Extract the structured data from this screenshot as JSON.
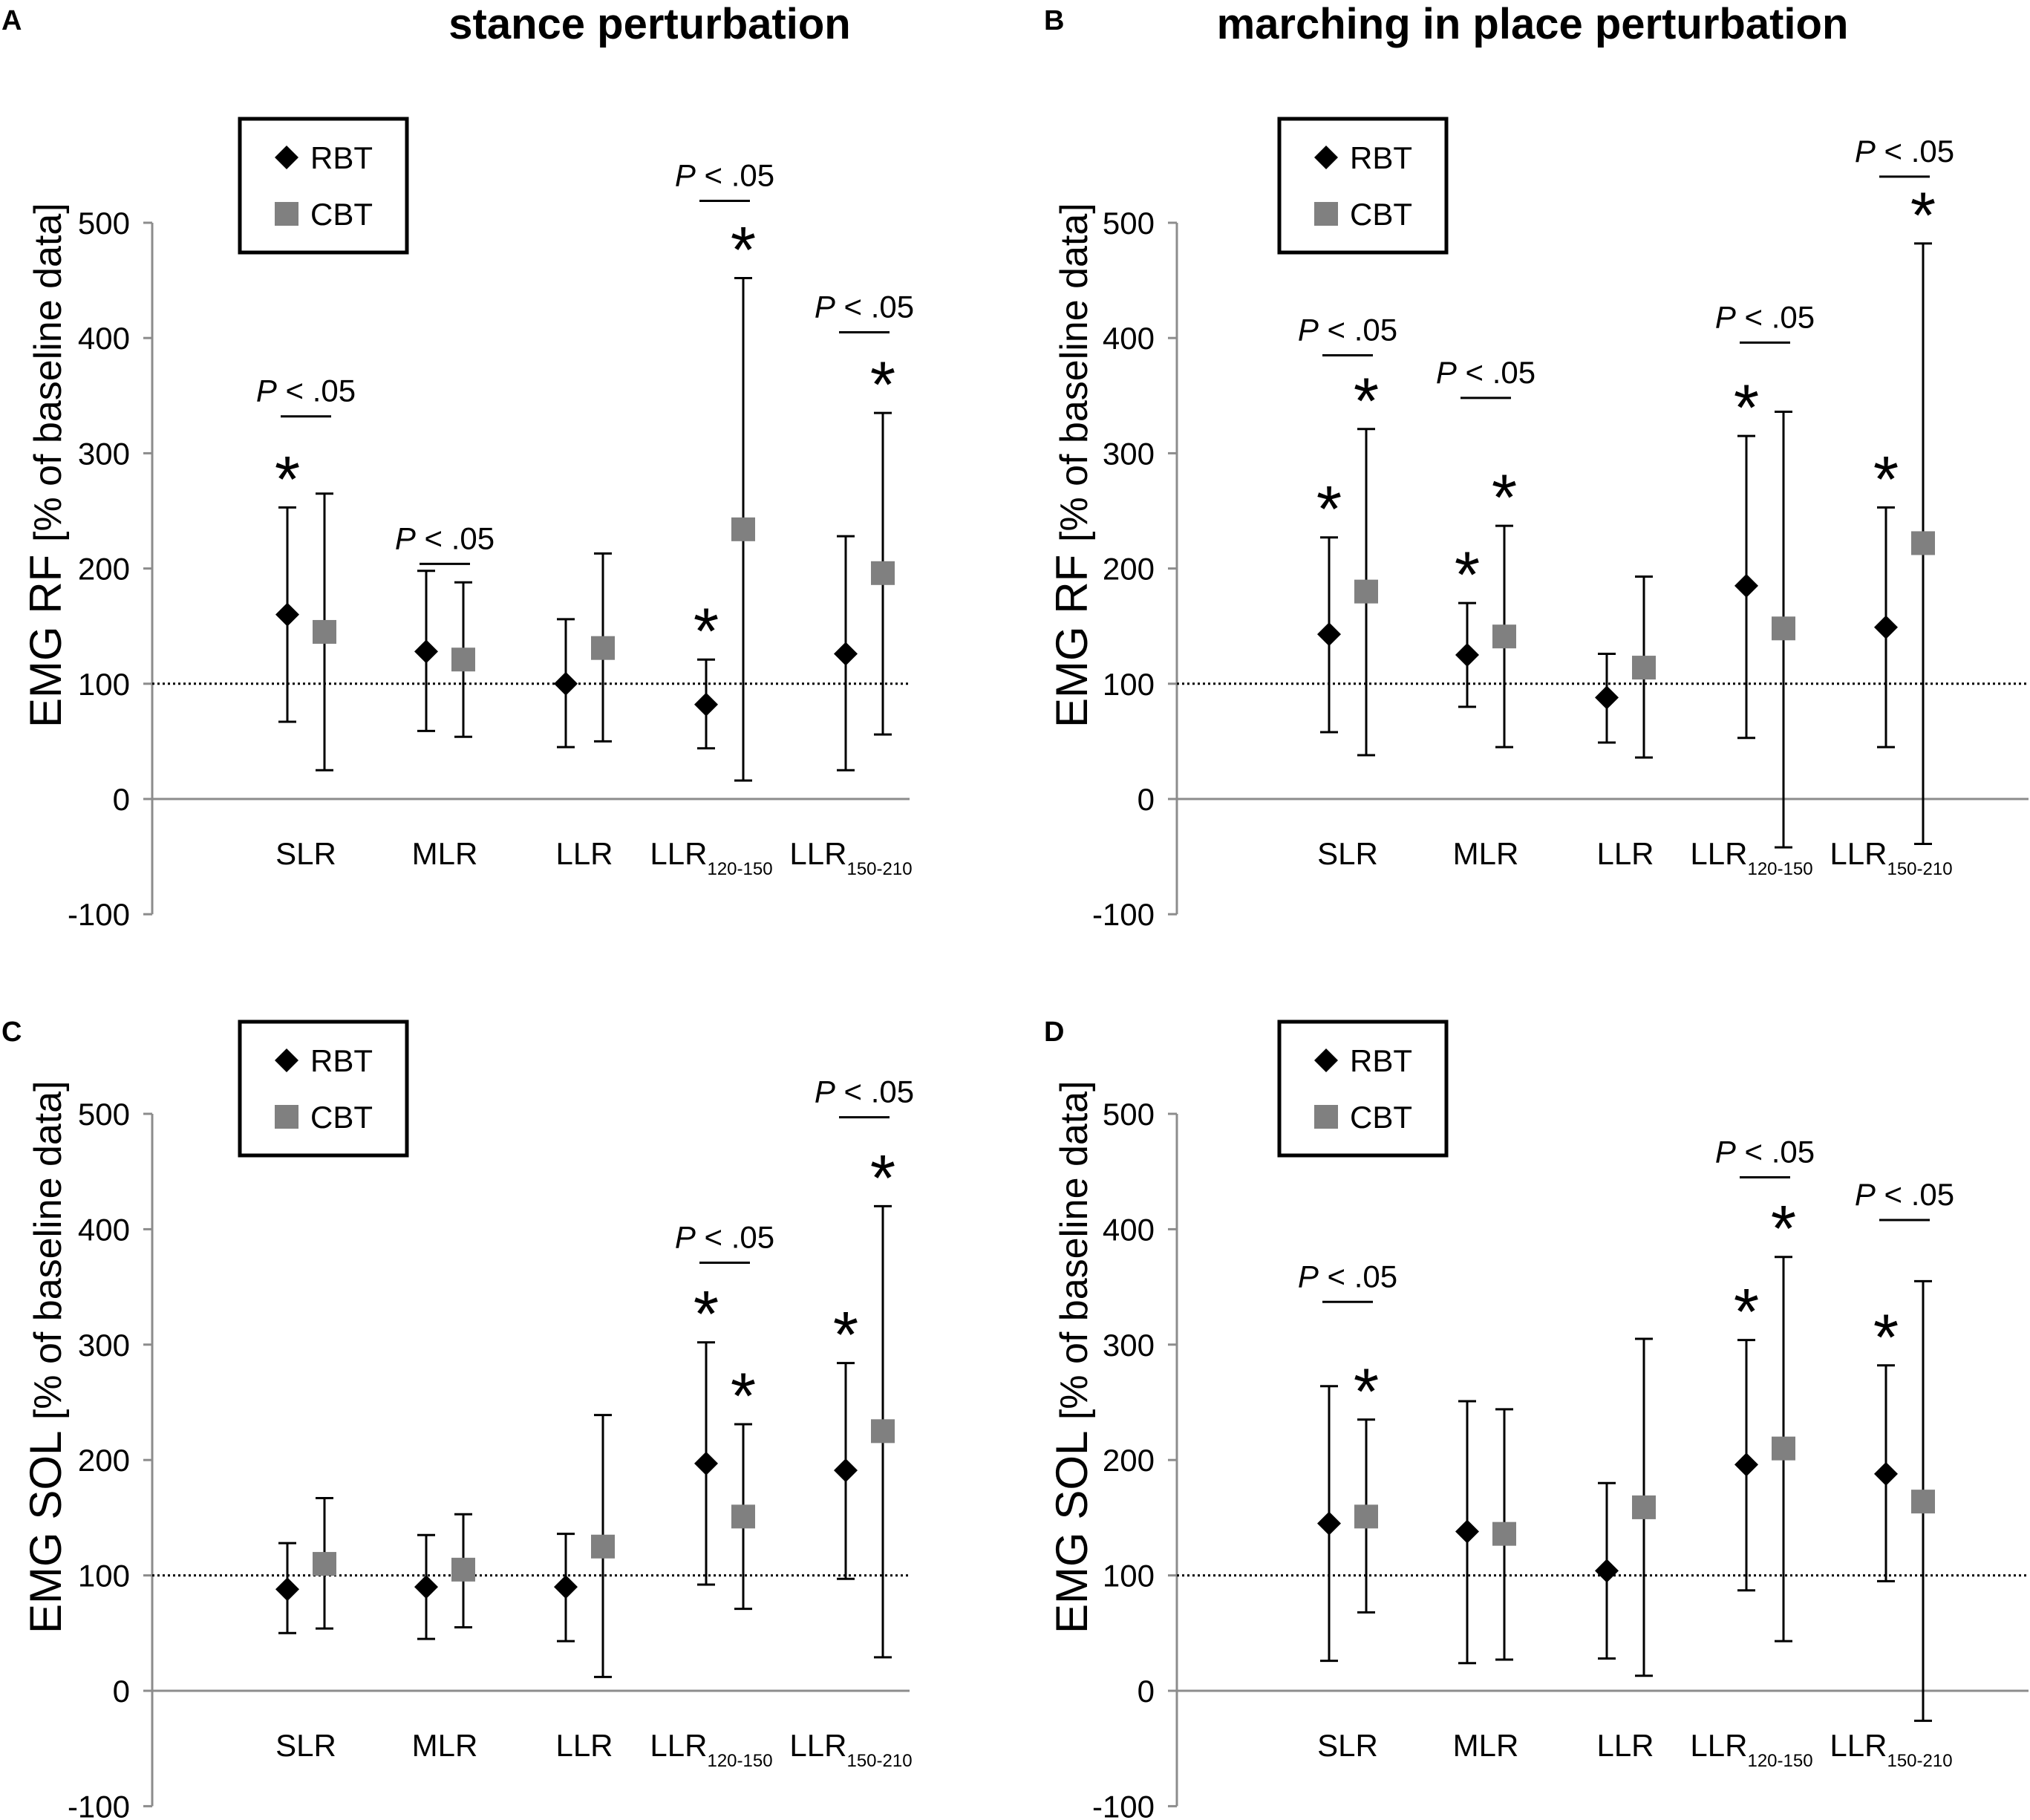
{
  "column_titles": [
    "stance perturbation",
    "marching in place perturbation"
  ],
  "legend": {
    "rbt": "RBT",
    "cbt": "CBT"
  },
  "colors": {
    "rbt": "#000000",
    "cbt": "#808080",
    "axis": "#8c8c8c",
    "baseline": "#000000"
  },
  "chart_data": [
    {
      "panel": "A",
      "type": "scatter",
      "title": "stance perturbation",
      "ylabel_main": "EMG RF",
      "ylabel_sub": "[% of baseline data]",
      "yticks": [
        "500",
        "400",
        "300",
        "200",
        "100",
        "0",
        "-100"
      ],
      "ylim": [
        -100,
        500
      ],
      "reference_line": 100,
      "categories": [
        {
          "main": "SLR",
          "sub": ""
        },
        {
          "main": "MLR",
          "sub": ""
        },
        {
          "main": "LLR",
          "sub": ""
        },
        {
          "main": "LLR",
          "sub": "120-150"
        },
        {
          "main": "LLR",
          "sub": "150-210"
        }
      ],
      "series": [
        {
          "name": "RBT",
          "marker": "diamond",
          "values": [
            160,
            128,
            100,
            82,
            126
          ],
          "lower": [
            67,
            59,
            45,
            44,
            25
          ],
          "upper": [
            253,
            198,
            156,
            121,
            228
          ]
        },
        {
          "name": "CBT",
          "marker": "square",
          "values": [
            145,
            121,
            131,
            234,
            196
          ],
          "lower": [
            25,
            54,
            50,
            16,
            56
          ],
          "upper": [
            265,
            188,
            213,
            452,
            335
          ]
        }
      ],
      "significance": [
        {
          "index": 0,
          "text": "P < .05",
          "y": 332
        },
        {
          "index": 1,
          "text": "P < .05",
          "y": 204
        },
        {
          "index": 3,
          "text": "P < .05",
          "y": 519
        },
        {
          "index": 4,
          "text": "P < .05",
          "y": 405
        }
      ],
      "stars": [
        {
          "index": 0,
          "series": "RBT",
          "text": "*"
        },
        {
          "index": 3,
          "series": "RBT",
          "text": "*"
        },
        {
          "index": 3,
          "series": "CBT",
          "text": "*"
        },
        {
          "index": 4,
          "series": "CBT",
          "text": "*"
        }
      ]
    },
    {
      "panel": "B",
      "type": "scatter",
      "title": "marching in place perturbation",
      "ylabel_main": "EMG RF",
      "ylabel_sub": "[% of baseline data]",
      "yticks": [
        "500",
        "400",
        "300",
        "200",
        "100",
        "0",
        "-100"
      ],
      "ylim": [
        -100,
        500
      ],
      "reference_line": 100,
      "categories": [
        {
          "main": "SLR",
          "sub": ""
        },
        {
          "main": "MLR",
          "sub": ""
        },
        {
          "main": "LLR",
          "sub": ""
        },
        {
          "main": "LLR",
          "sub": "120-150"
        },
        {
          "main": "LLR",
          "sub": "150-210"
        }
      ],
      "series": [
        {
          "name": "RBT",
          "marker": "diamond",
          "values": [
            143,
            125,
            88,
            185,
            149
          ],
          "lower": [
            58,
            80,
            49,
            53,
            45
          ],
          "upper": [
            227,
            170,
            126,
            315,
            253
          ]
        },
        {
          "name": "CBT",
          "marker": "square",
          "values": [
            180,
            141,
            114,
            148,
            222
          ],
          "lower": [
            38,
            45,
            36,
            -42,
            -39
          ],
          "upper": [
            321,
            237,
            193,
            336,
            482
          ]
        }
      ],
      "significance": [
        {
          "index": 0,
          "text": "P < .05",
          "y": 385
        },
        {
          "index": 1,
          "text": "P < .05",
          "y": 348
        },
        {
          "index": 3,
          "text": "P < .05",
          "y": 396
        },
        {
          "index": 4,
          "text": "P < .05",
          "y": 540
        }
      ],
      "stars": [
        {
          "index": 0,
          "series": "RBT",
          "text": "*"
        },
        {
          "index": 0,
          "series": "CBT",
          "text": "*"
        },
        {
          "index": 1,
          "series": "RBT",
          "text": "*"
        },
        {
          "index": 1,
          "series": "CBT",
          "text": "*"
        },
        {
          "index": 3,
          "series": "RBT",
          "text": "*"
        },
        {
          "index": 4,
          "series": "RBT",
          "text": "*"
        },
        {
          "index": 4,
          "series": "CBT",
          "text": "*"
        }
      ]
    },
    {
      "panel": "C",
      "type": "scatter",
      "title": "",
      "ylabel_main": "EMG SOL",
      "ylabel_sub": "[% of baseline data]",
      "yticks": [
        "500",
        "400",
        "300",
        "200",
        "100",
        "0",
        "-100"
      ],
      "ylim": [
        -100,
        500
      ],
      "reference_line": 100,
      "categories": [
        {
          "main": "SLR",
          "sub": ""
        },
        {
          "main": "MLR",
          "sub": ""
        },
        {
          "main": "LLR",
          "sub": ""
        },
        {
          "main": "LLR",
          "sub": "120-150"
        },
        {
          "main": "LLR",
          "sub": "150-210"
        }
      ],
      "series": [
        {
          "name": "RBT",
          "marker": "diamond",
          "values": [
            88,
            90,
            90,
            197,
            191
          ],
          "lower": [
            50,
            45,
            43,
            92,
            97
          ],
          "upper": [
            128,
            135,
            136,
            302,
            284
          ]
        },
        {
          "name": "CBT",
          "marker": "square",
          "values": [
            110,
            105,
            125,
            151,
            225
          ],
          "lower": [
            54,
            55,
            12,
            71,
            29
          ],
          "upper": [
            167,
            153,
            239,
            231,
            420
          ]
        }
      ],
      "significance": [
        {
          "index": 3,
          "text": "P < .05",
          "y": 371
        },
        {
          "index": 4,
          "text": "P < .05",
          "y": 497
        }
      ],
      "stars": [
        {
          "index": 3,
          "series": "RBT",
          "text": "*"
        },
        {
          "index": 3,
          "series": "CBT",
          "text": "*"
        },
        {
          "index": 4,
          "series": "RBT",
          "text": "*"
        },
        {
          "index": 4,
          "series": "CBT",
          "text": "*"
        }
      ]
    },
    {
      "panel": "D",
      "type": "scatter",
      "title": "",
      "ylabel_main": "EMG SOL",
      "ylabel_sub": "[% of baseline data]",
      "yticks": [
        "500",
        "400",
        "300",
        "200",
        "100",
        "0",
        "-100"
      ],
      "ylim": [
        -100,
        500
      ],
      "reference_line": 100,
      "categories": [
        {
          "main": "SLR",
          "sub": ""
        },
        {
          "main": "MLR",
          "sub": ""
        },
        {
          "main": "LLR",
          "sub": ""
        },
        {
          "main": "LLR",
          "sub": "120-150"
        },
        {
          "main": "LLR",
          "sub": "150-210"
        }
      ],
      "series": [
        {
          "name": "RBT",
          "marker": "diamond",
          "values": [
            145,
            138,
            104,
            196,
            188
          ],
          "lower": [
            26,
            24,
            28,
            87,
            95
          ],
          "upper": [
            264,
            251,
            180,
            304,
            282
          ]
        },
        {
          "name": "CBT",
          "marker": "square",
          "values": [
            151,
            136,
            159,
            210,
            164
          ],
          "lower": [
            68,
            27,
            13,
            43,
            -26
          ],
          "upper": [
            235,
            244,
            305,
            376,
            355
          ]
        }
      ],
      "significance": [
        {
          "index": 0,
          "text": "P < .05",
          "y": 337
        },
        {
          "index": 3,
          "text": "P < .05",
          "y": 445
        },
        {
          "index": 4,
          "text": "P < .05",
          "y": 408
        }
      ],
      "stars": [
        {
          "index": 0,
          "series": "CBT",
          "text": "*"
        },
        {
          "index": 3,
          "series": "RBT",
          "text": "*"
        },
        {
          "index": 3,
          "series": "CBT",
          "text": "*"
        },
        {
          "index": 4,
          "series": "RBT",
          "text": "*"
        }
      ]
    }
  ]
}
